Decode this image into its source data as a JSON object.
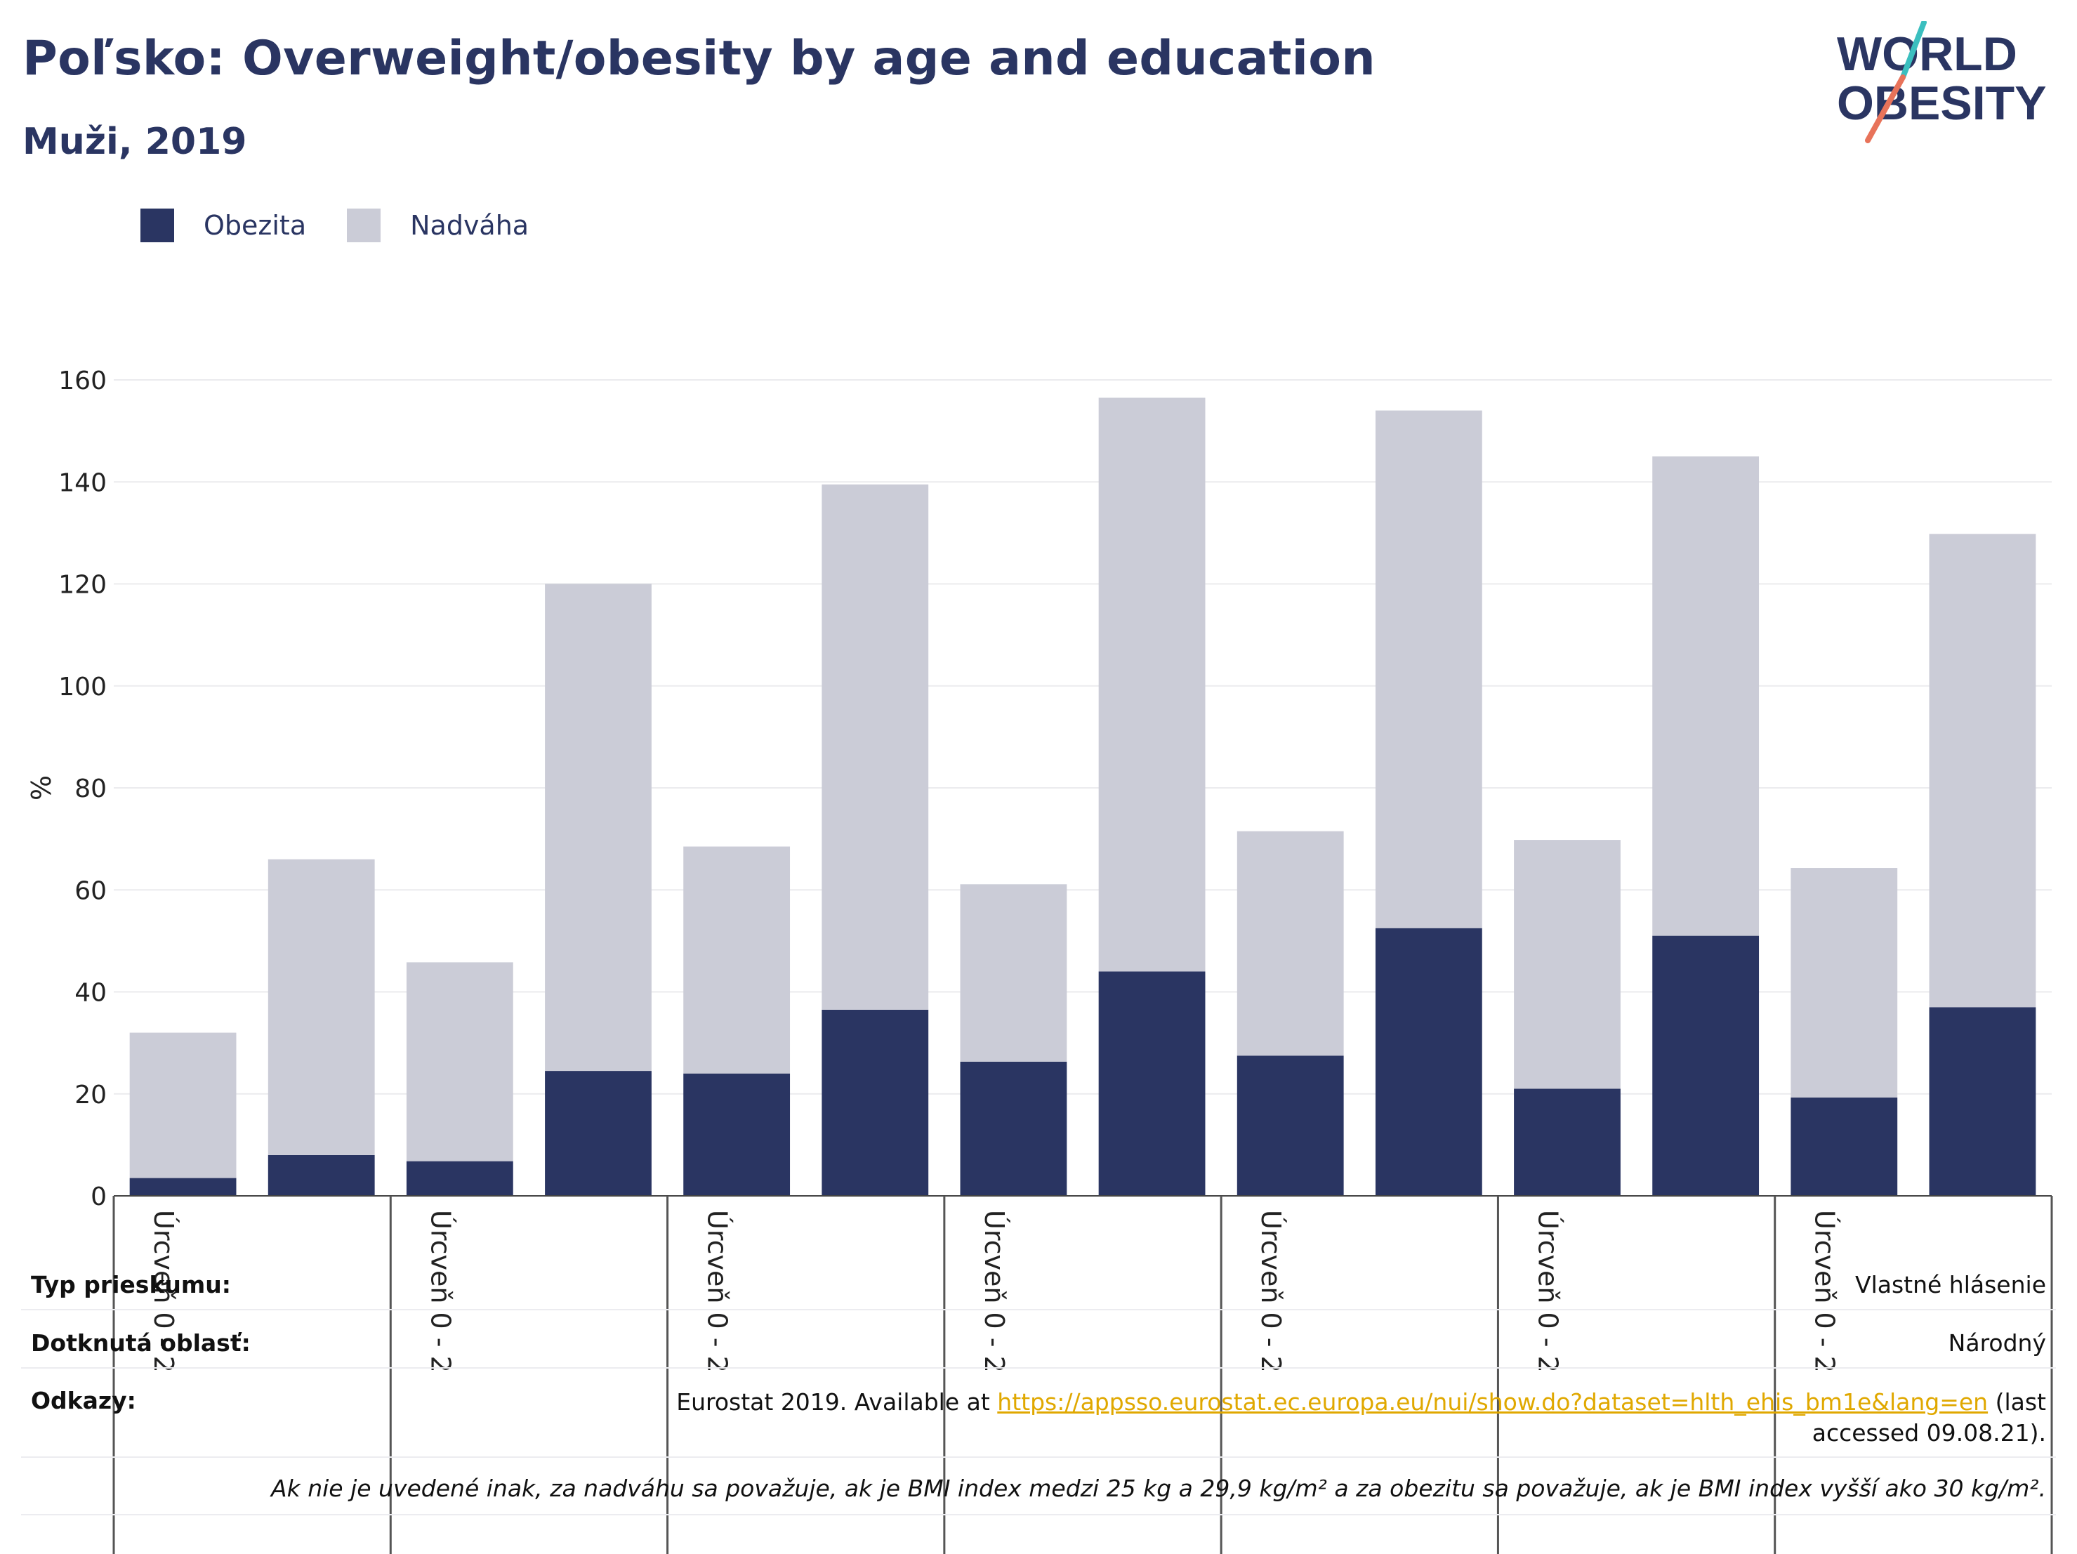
{
  "header": {
    "title": "Poľsko: Overweight/obesity by age and education",
    "subtitle": "Muži, 2019"
  },
  "logo": {
    "line1": "WORLD",
    "line2": "OBESITY"
  },
  "legend": [
    {
      "label": "Obezita",
      "color": "#2a3562"
    },
    {
      "label": "Nadváha",
      "color": "#cbccd7"
    }
  ],
  "chart_data": {
    "type": "bar",
    "stacked": true,
    "ylabel": "%",
    "ylim": [
      0,
      160
    ],
    "yticks": [
      0,
      20,
      40,
      60,
      80,
      100,
      120,
      140,
      160
    ],
    "grid": true,
    "legend_position": "top-left",
    "group_label": "Úrcveň 0 - 2",
    "categories": [
      "",
      "",
      "",
      "",
      "",
      "",
      "",
      "",
      "",
      "",
      "",
      "",
      "",
      ""
    ],
    "series": [
      {
        "name": "Obezita",
        "color": "#2a3562",
        "values": [
          3.5,
          8,
          6.8,
          24.5,
          24,
          36.5,
          26.3,
          44,
          27.5,
          52.5,
          21,
          51,
          19.3,
          37
        ]
      },
      {
        "name": "Nadváha",
        "color": "#cbccd7",
        "values": [
          28.5,
          58,
          39,
          95.5,
          44.5,
          103,
          34.8,
          112.5,
          44,
          101.5,
          48.8,
          94,
          45,
          92.8
        ]
      }
    ]
  },
  "info": {
    "survey_type_label": "Typ prieskumu:",
    "survey_type_value": "Vlastné hlásenie",
    "area_label": "Dotknutá oblasť:",
    "area_value": "Národný",
    "refs_label": "Odkazy:",
    "refs_prefix": "Eurostat 2019. Available at ",
    "refs_link": "https://appsso.eurostat.ec.europa.eu/nui/show.do?dataset=hlth_ehis_bm1e&lang=en",
    "refs_suffix": " (last accessed 09.08.21).",
    "note": "Ak nie je uvedené inak, za nadváhu sa považuje, ak je BMI index medzi 25 kg a 29,9 kg/m² a za obezitu sa považuje, ak je BMI index vyšší ako 30 kg/m²."
  }
}
